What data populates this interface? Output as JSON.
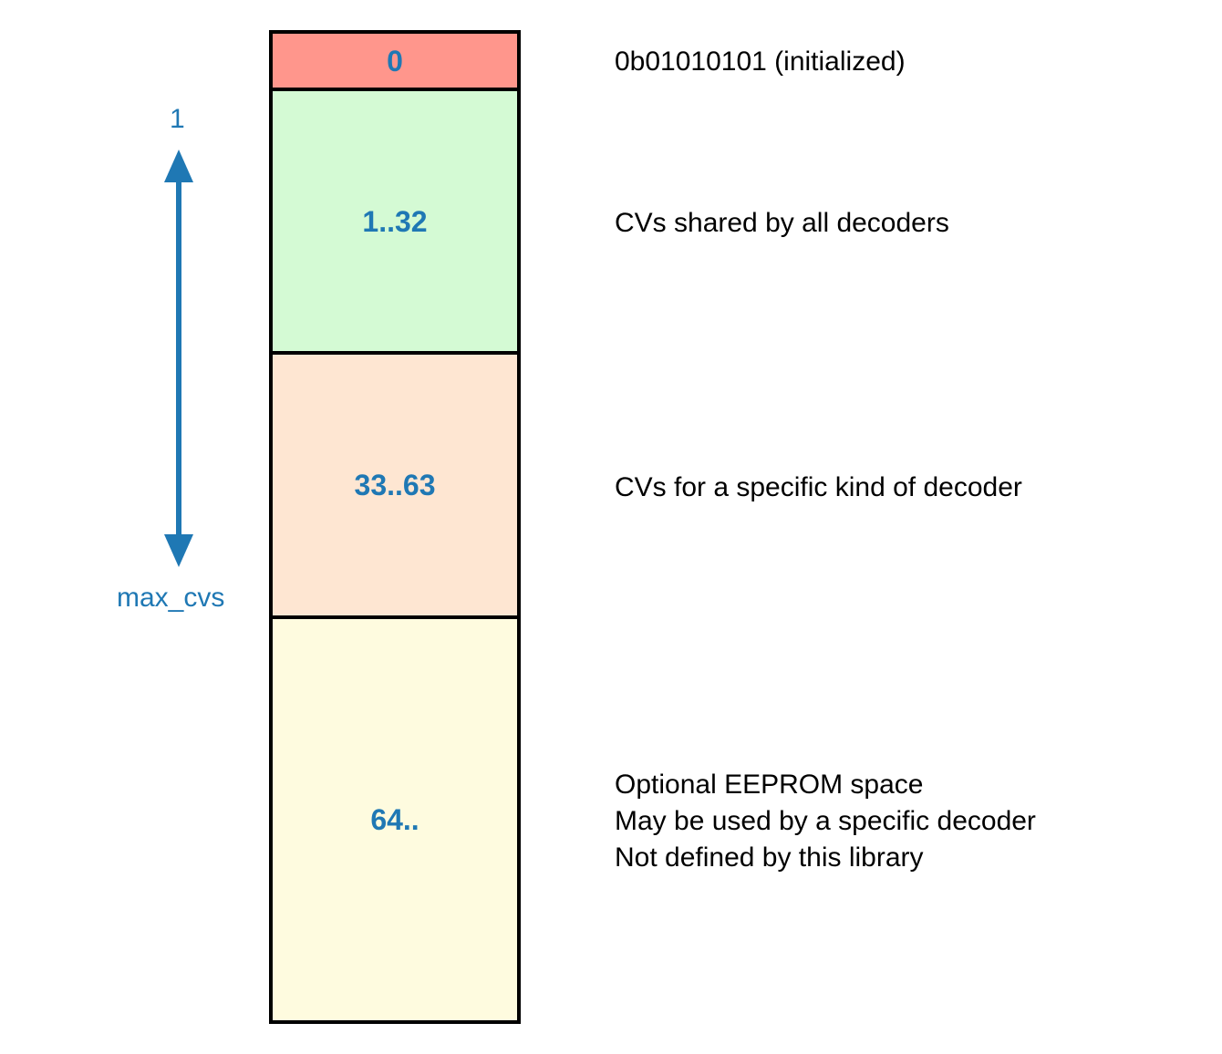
{
  "blocks": [
    {
      "label": "0",
      "fill": "#ff968c"
    },
    {
      "label": "1..32",
      "fill": "#d4fad4"
    },
    {
      "label": "33..63",
      "fill": "#fee6d2"
    },
    {
      "label": "64..",
      "fill": "#fefbdf"
    }
  ],
  "descriptions": [
    {
      "lines": [
        "0b01010101 (initialized)"
      ]
    },
    {
      "lines": [
        "CVs shared by all decoders"
      ]
    },
    {
      "lines": [
        "CVs for a specific kind of decoder"
      ]
    },
    {
      "lines": [
        "Optional EEPROM space",
        "May be used by a specific decoder",
        "Not defined by this library"
      ]
    }
  ],
  "range": {
    "start_label": "1",
    "end_label": "max_cvs",
    "color": "#1f78b4"
  },
  "colors": {
    "accent": "#1f78b4",
    "border": "#000000",
    "text": "#000000"
  }
}
